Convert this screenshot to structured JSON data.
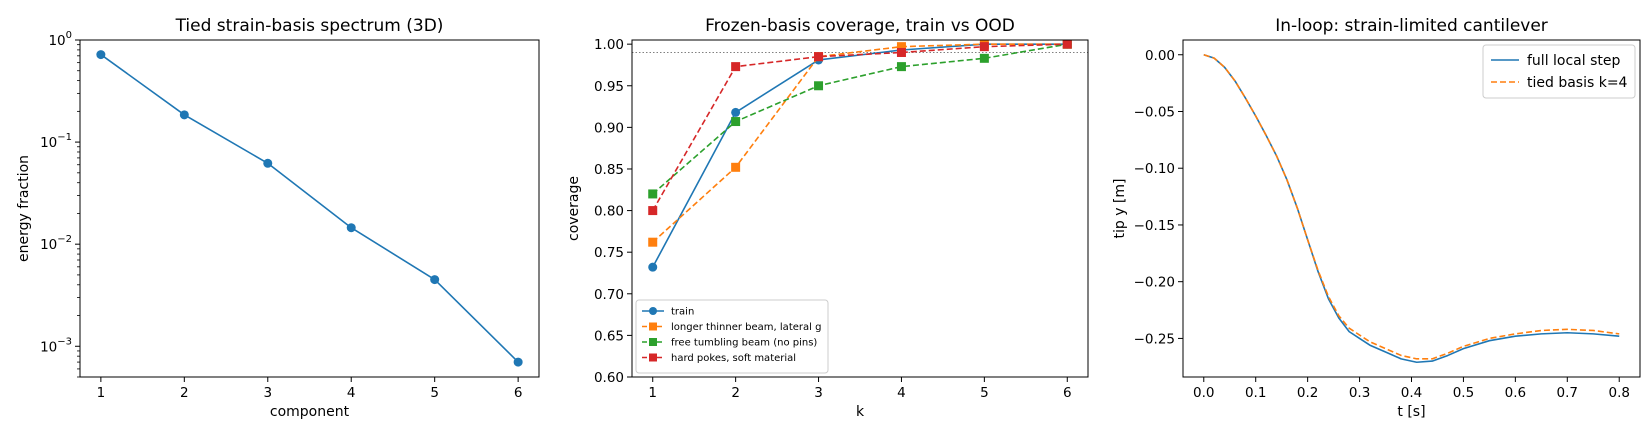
{
  "chart_data": [
    {
      "type": "line",
      "title": "Tied strain-basis spectrum (3D)",
      "xlabel": "component",
      "ylabel": "energy fraction",
      "yscale": "log",
      "xlim": [
        0.75,
        6.25
      ],
      "ylim": [
        0.0005,
        1.0
      ],
      "xticks": [
        "1",
        "2",
        "3",
        "4",
        "5",
        "6"
      ],
      "yticks": [
        {
          "base": "10",
          "exp": "0",
          "value": 1
        },
        {
          "base": "10",
          "exp": "−1",
          "value": 0.1
        },
        {
          "base": "10",
          "exp": "−2",
          "value": 0.01
        },
        {
          "base": "10",
          "exp": "−3",
          "value": 0.001
        }
      ],
      "grid": false,
      "series": [
        {
          "color": "#1f77b4",
          "marker": "circle",
          "style": "solid",
          "x": [
            1,
            2,
            3,
            4,
            5,
            6
          ],
          "y": [
            0.72,
            0.185,
            0.062,
            0.0145,
            0.0045,
            0.0007
          ]
        }
      ]
    },
    {
      "type": "line",
      "title": "Frozen-basis coverage, train vs OOD",
      "xlabel": "k",
      "ylabel": "coverage",
      "xlim": [
        0.75,
        6.25
      ],
      "ylim": [
        0.6,
        1.005
      ],
      "xticks": [
        "1",
        "2",
        "3",
        "4",
        "5",
        "6"
      ],
      "yticks": [
        "0.60",
        "0.65",
        "0.70",
        "0.75",
        "0.80",
        "0.85",
        "0.90",
        "0.95",
        "1.00"
      ],
      "reference_line": {
        "y": 0.99,
        "color": "#808080",
        "style": "dotted"
      },
      "legend": "lower-left",
      "grid": false,
      "series": [
        {
          "name": "train",
          "color": "#1f77b4",
          "marker": "circle",
          "style": "solid",
          "x": [
            1,
            2,
            3,
            4,
            5,
            6
          ],
          "y": [
            0.732,
            0.918,
            0.981,
            0.993,
            1.0,
            1.0
          ]
        },
        {
          "name": "longer thinner beam, lateral g",
          "color": "#ff7f0e",
          "marker": "square",
          "style": "dashed",
          "x": [
            1,
            2,
            3,
            4,
            5,
            6
          ],
          "y": [
            0.762,
            0.852,
            0.985,
            0.997,
            1.0,
            1.0
          ]
        },
        {
          "name": "free tumbling beam (no pins)",
          "color": "#2ca02c",
          "marker": "square",
          "style": "dashed",
          "x": [
            1,
            2,
            3,
            4,
            5,
            6
          ],
          "y": [
            0.82,
            0.907,
            0.95,
            0.973,
            0.983,
            1.0
          ]
        },
        {
          "name": "hard pokes, soft material",
          "color": "#d62728",
          "marker": "square",
          "style": "dashed",
          "x": [
            1,
            2,
            3,
            4,
            5,
            6
          ],
          "y": [
            0.8,
            0.973,
            0.985,
            0.99,
            0.997,
            1.0
          ]
        }
      ]
    },
    {
      "type": "line",
      "title": "In-loop: strain-limited cantilever",
      "xlabel": "t [s]",
      "ylabel": "tip y [m]",
      "xlim": [
        -0.04,
        0.84
      ],
      "ylim": [
        -0.284,
        0.013
      ],
      "xticks": [
        "0.0",
        "0.1",
        "0.2",
        "0.3",
        "0.4",
        "0.5",
        "0.6",
        "0.7",
        "0.8"
      ],
      "yticks": [
        "0.00",
        "−0.05",
        "−0.10",
        "−0.15",
        "−0.20",
        "−0.25"
      ],
      "legend": "upper-right",
      "grid": false,
      "series": [
        {
          "name": "full local step",
          "color": "#1f77b4",
          "style": "solid",
          "x": [
            0.0,
            0.02,
            0.04,
            0.06,
            0.08,
            0.1,
            0.12,
            0.14,
            0.16,
            0.18,
            0.2,
            0.22,
            0.24,
            0.26,
            0.28,
            0.3,
            0.32,
            0.35,
            0.38,
            0.41,
            0.44,
            0.47,
            0.5,
            0.55,
            0.6,
            0.65,
            0.7,
            0.75,
            0.8
          ],
          "y": [
            0.0,
            -0.003,
            -0.011,
            -0.023,
            -0.038,
            -0.054,
            -0.071,
            -0.089,
            -0.11,
            -0.135,
            -0.163,
            -0.191,
            -0.215,
            -0.232,
            -0.244,
            -0.25,
            -0.256,
            -0.262,
            -0.268,
            -0.271,
            -0.27,
            -0.265,
            -0.259,
            -0.252,
            -0.248,
            -0.246,
            -0.245,
            -0.246,
            -0.248
          ]
        },
        {
          "name": "tied basis k=4",
          "color": "#ff7f0e",
          "style": "dashed",
          "x": [
            0.0,
            0.02,
            0.04,
            0.06,
            0.08,
            0.1,
            0.12,
            0.14,
            0.16,
            0.18,
            0.2,
            0.22,
            0.24,
            0.26,
            0.28,
            0.3,
            0.32,
            0.35,
            0.38,
            0.41,
            0.44,
            0.47,
            0.5,
            0.55,
            0.6,
            0.65,
            0.7,
            0.75,
            0.8
          ],
          "y": [
            0.0,
            -0.003,
            -0.011,
            -0.023,
            -0.038,
            -0.054,
            -0.071,
            -0.089,
            -0.11,
            -0.135,
            -0.163,
            -0.19,
            -0.213,
            -0.23,
            -0.241,
            -0.247,
            -0.253,
            -0.259,
            -0.265,
            -0.268,
            -0.268,
            -0.263,
            -0.257,
            -0.25,
            -0.246,
            -0.243,
            -0.242,
            -0.243,
            -0.246
          ]
        }
      ]
    }
  ]
}
